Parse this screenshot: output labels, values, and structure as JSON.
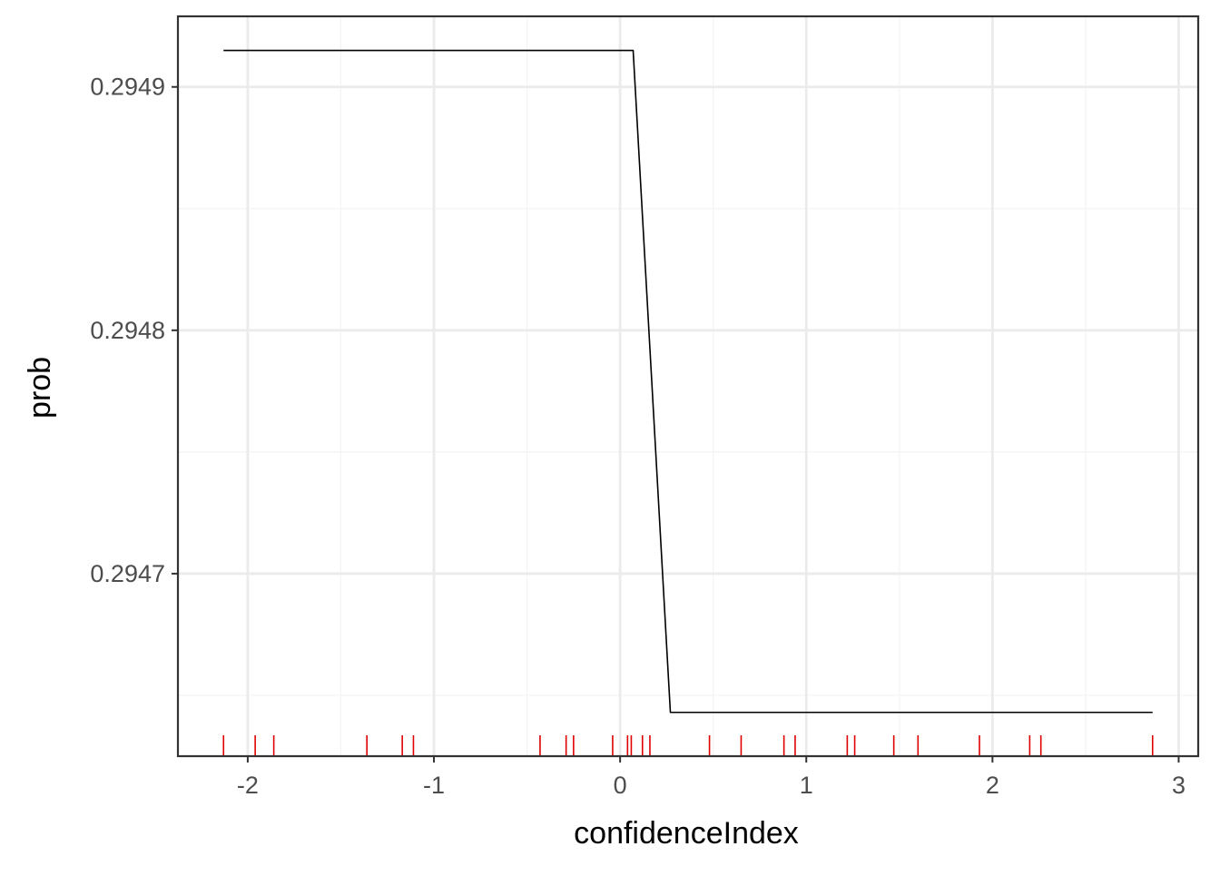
{
  "chart_data": {
    "type": "line",
    "title": "",
    "xlabel": "confidenceIndex",
    "ylabel": "prob",
    "xlim": [
      -2.375,
      3.105
    ],
    "ylim": [
      0.294625,
      0.294929
    ],
    "grid": true,
    "x_ticks": [
      -2,
      -1,
      0,
      1,
      2,
      3
    ],
    "x_tick_labels": [
      "-2",
      "-1",
      "0",
      "1",
      "2",
      "3"
    ],
    "y_ticks": [
      0.2947,
      0.2948,
      0.2949
    ],
    "y_tick_labels": [
      "0.2947",
      "0.2948",
      "0.2949"
    ],
    "series": [
      {
        "x": [
          -2.13,
          0.07,
          0.27,
          2.86
        ],
        "y": [
          0.294915,
          0.294915,
          0.294643,
          0.294643
        ],
        "color": "#000000"
      }
    ],
    "rug": {
      "color": "#e00000",
      "x": [
        -2.13,
        -1.96,
        -1.86,
        -1.36,
        -1.17,
        -1.11,
        -0.43,
        -0.29,
        -0.25,
        -0.04,
        0.04,
        0.06,
        0.12,
        0.16,
        0.48,
        0.65,
        0.88,
        0.94,
        1.22,
        1.26,
        1.47,
        1.6,
        1.93,
        2.2,
        2.26,
        2.86
      ]
    },
    "colors": {
      "background": "#ffffff",
      "panel_border": "#333333",
      "grid_major": "#ebebeb",
      "grid_minor": "#f5f5f5",
      "tick_text": "#4d4d4d",
      "axis_title": "#000000"
    }
  }
}
